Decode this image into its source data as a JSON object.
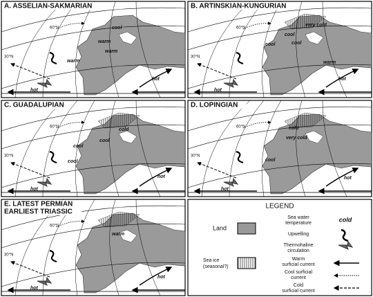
{
  "panels": [
    {
      "title": [
        "A. ASSELIAN-SAKMARIAN"
      ],
      "lat": [
        "60°N",
        "30°N"
      ],
      "labels": [
        "cool",
        "warm",
        "warm",
        "warm",
        "hot",
        "hot"
      ]
    },
    {
      "title": [
        "B. ARTINSKIAN-KUNGURIAN"
      ],
      "lat": [
        "60°N",
        "30°N"
      ],
      "labels": [
        "very cold",
        "cool",
        "cool",
        "cool",
        "warm",
        "hot",
        "hot"
      ]
    },
    {
      "title": [
        "C. GUADALUPIAN"
      ],
      "lat": [
        "60°N",
        "30°N"
      ],
      "labels": [
        "cold",
        "cool",
        "cool",
        "cool",
        "hot",
        "hot"
      ]
    },
    {
      "title": [
        "D. LOPINGIAN"
      ],
      "lat": [
        "60°N",
        "30°N"
      ],
      "labels": [
        "cold",
        "very cold",
        "cool",
        "hot",
        "hot"
      ]
    },
    {
      "title": [
        "E. LATEST PERMIAN",
        "EARLIEST TRIASSIC"
      ],
      "lat": [
        "60°N",
        "30°N"
      ],
      "labels": [
        "warm",
        "hot",
        "hot"
      ]
    }
  ],
  "legend": {
    "title": "LEGEND",
    "land": "Land",
    "sea_ice": [
      "Sea ice",
      "(seasonal?)"
    ],
    "temperature": [
      "Sea water",
      "temperature"
    ],
    "temperature_example": "cold",
    "upwelling": "Upwelling",
    "thermohaline": [
      "Thermohaline",
      "circulation"
    ],
    "warm_current": [
      "Warm",
      "surficial current"
    ],
    "cool_current": [
      "Cool surficial",
      "current"
    ],
    "cold_current": [
      "Cold",
      "surficial current"
    ]
  }
}
